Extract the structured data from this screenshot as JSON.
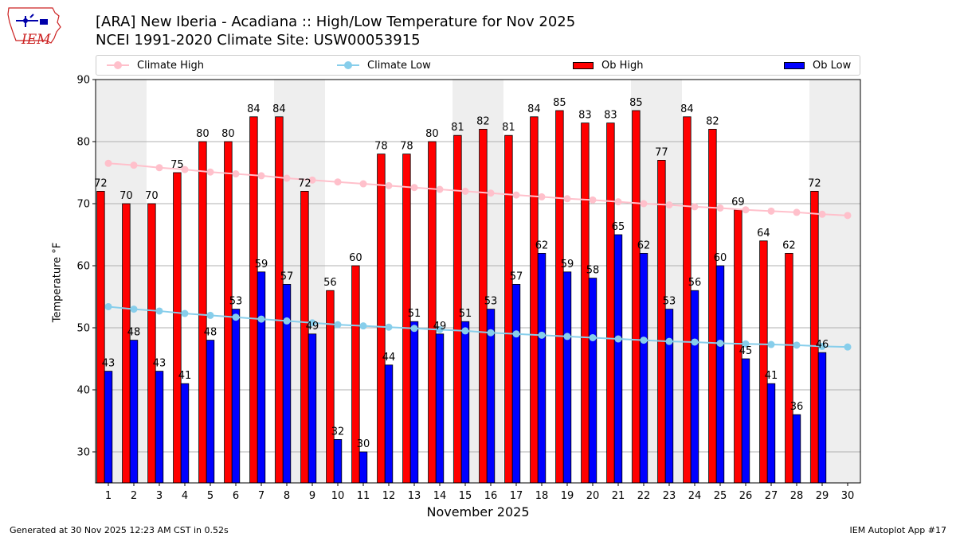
{
  "header": {
    "title_line1": "[ARA] New Iberia - Acadiana :: High/Low Temperature for Nov 2025",
    "title_line2": "NCEI 1991-2020 Climate Site: USW00053915",
    "logo_text": "IEM"
  },
  "footer": {
    "left": "Generated at 30 Nov 2025 12:23 AM CST in 0.52s",
    "right": "IEM Autoplot App #17"
  },
  "colors": {
    "ob_high": "#ff0000",
    "ob_low": "#0000ff",
    "climate_high": "#ffc0cb",
    "climate_low": "#87ceeb",
    "weekend_shade": "#eeeeee"
  },
  "chart_data": {
    "type": "bar",
    "xlabel": "November 2025",
    "ylabel": "Temperature °F",
    "ylim": [
      25,
      90
    ],
    "yticks": [
      30,
      40,
      50,
      60,
      70,
      80,
      90
    ],
    "grid": "horizontal",
    "legend_position": "top",
    "categories": [
      1,
      2,
      3,
      4,
      5,
      6,
      7,
      8,
      9,
      10,
      11,
      12,
      13,
      14,
      15,
      16,
      17,
      18,
      19,
      20,
      21,
      22,
      23,
      24,
      25,
      26,
      27,
      28,
      29,
      30
    ],
    "weekend_spans": [
      [
        1,
        2
      ],
      [
        8,
        9
      ],
      [
        15,
        16
      ],
      [
        22,
        23
      ],
      [
        29,
        30
      ]
    ],
    "series": [
      {
        "name": "Climate High",
        "type": "line",
        "values": [
          76.5,
          76.2,
          75.8,
          75.5,
          75.1,
          74.8,
          74.5,
          74.1,
          73.8,
          73.5,
          73.2,
          72.9,
          72.6,
          72.3,
          72.0,
          71.7,
          71.4,
          71.1,
          70.8,
          70.6,
          70.3,
          70.0,
          69.8,
          69.5,
          69.3,
          69.0,
          68.8,
          68.6,
          68.3,
          68.1
        ]
      },
      {
        "name": "Climate Low",
        "type": "line",
        "values": [
          53.4,
          53.0,
          52.7,
          52.3,
          52.0,
          51.7,
          51.4,
          51.1,
          50.8,
          50.5,
          50.3,
          50.1,
          49.9,
          49.7,
          49.5,
          49.2,
          49.0,
          48.8,
          48.6,
          48.4,
          48.2,
          48.0,
          47.8,
          47.7,
          47.5,
          47.4,
          47.3,
          47.2,
          47.0,
          46.9
        ]
      },
      {
        "name": "Ob High",
        "type": "bar",
        "values": [
          72,
          70,
          70,
          75,
          80,
          80,
          84,
          84,
          72,
          56,
          60,
          78,
          78,
          80,
          81,
          82,
          81,
          84,
          85,
          83,
          83,
          85,
          77,
          84,
          82,
          69,
          64,
          62,
          72,
          null
        ]
      },
      {
        "name": "Ob Low",
        "type": "bar",
        "values": [
          43,
          48,
          43,
          41,
          48,
          53,
          59,
          57,
          49,
          32,
          30,
          44,
          51,
          49,
          51,
          53,
          57,
          62,
          59,
          58,
          65,
          62,
          53,
          56,
          60,
          45,
          41,
          36,
          46,
          null
        ]
      }
    ]
  }
}
